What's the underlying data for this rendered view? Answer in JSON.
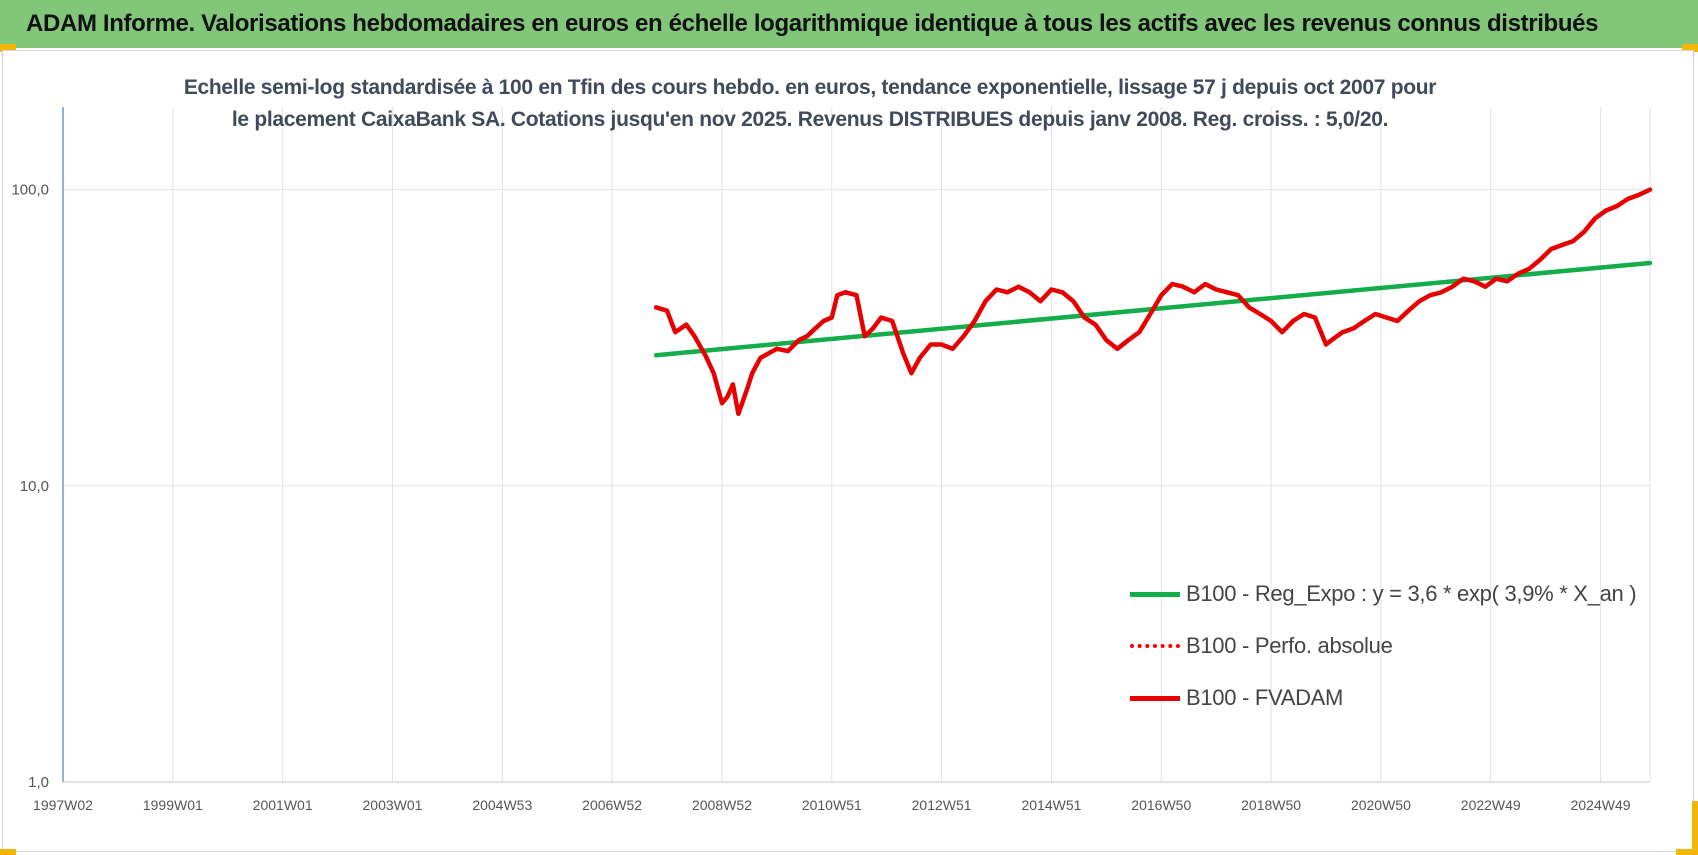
{
  "banner": {
    "title": "ADAM Informe. Valorisations hebdomadaires en euros en échelle logarithmique identique à tous les actifs avec les revenus connus distribués"
  },
  "chart_data": {
    "type": "line",
    "title": "Echelle semi-log standardisée à 100 en Tfin des cours hebdo. en euros, tendance exponentielle, lissage 57 j depuis oct 2007 pour le placement CaixaBank SA. Cotations jusqu'en nov 2025. Revenus DISTRIBUES depuis janv 2008. Reg. croiss. : 5,0/20.",
    "y_scale": "log",
    "ylim": [
      1,
      190
    ],
    "y_ticks": [
      {
        "value": 1,
        "label": "1,0"
      },
      {
        "value": 10,
        "label": "10,0"
      },
      {
        "value": 100,
        "label": "100,0"
      }
    ],
    "x_range": [
      1997.0,
      2025.9
    ],
    "x_ticks": [
      {
        "value": 1997.0,
        "label": "1997W02"
      },
      {
        "value": 1999.0,
        "label": "1999W01"
      },
      {
        "value": 2001.0,
        "label": "2001W01"
      },
      {
        "value": 2003.0,
        "label": "2003W01"
      },
      {
        "value": 2005.0,
        "label": "2004W53"
      },
      {
        "value": 2007.0,
        "label": "2006W52"
      },
      {
        "value": 2009.0,
        "label": "2008W52"
      },
      {
        "value": 2011.0,
        "label": "2010W51"
      },
      {
        "value": 2013.0,
        "label": "2012W51"
      },
      {
        "value": 2015.0,
        "label": "2014W51"
      },
      {
        "value": 2017.0,
        "label": "2016W50"
      },
      {
        "value": 2019.0,
        "label": "2018W50"
      },
      {
        "value": 2021.0,
        "label": "2020W50"
      },
      {
        "value": 2023.0,
        "label": "2022W49"
      },
      {
        "value": 2025.0,
        "label": "2024W49"
      }
    ],
    "grid": true,
    "legend_position": "bottom-right",
    "series": [
      {
        "name": "B100 - Reg_Expo : y = 3,6 * exp( 3,9% *  X_an )",
        "color": "#13ad49",
        "style": "solid",
        "x": [
          2007.8,
          2025.9
        ],
        "y": [
          27.6,
          56.5
        ]
      },
      {
        "name": "B100 - Perfo. absolue",
        "color": "#ff0000",
        "style": "dotted",
        "x": [],
        "y": []
      },
      {
        "name": "B100 - FVADAM",
        "color": "#e60000",
        "style": "solid",
        "x": [
          2007.8,
          2008.0,
          2008.15,
          2008.35,
          2008.5,
          2008.7,
          2008.85,
          2009.0,
          2009.1,
          2009.2,
          2009.3,
          2009.45,
          2009.55,
          2009.7,
          2009.85,
          2010.0,
          2010.2,
          2010.4,
          2010.55,
          2010.7,
          2010.85,
          2011.0,
          2011.1,
          2011.25,
          2011.45,
          2011.6,
          2011.75,
          2011.9,
          2012.1,
          2012.3,
          2012.45,
          2012.6,
          2012.8,
          2013.0,
          2013.2,
          2013.4,
          2013.6,
          2013.8,
          2014.0,
          2014.2,
          2014.4,
          2014.6,
          2014.8,
          2015.0,
          2015.2,
          2015.4,
          2015.6,
          2015.8,
          2016.0,
          2016.2,
          2016.4,
          2016.6,
          2016.8,
          2017.0,
          2017.2,
          2017.4,
          2017.6,
          2017.8,
          2018.0,
          2018.2,
          2018.4,
          2018.6,
          2018.8,
          2019.0,
          2019.2,
          2019.4,
          2019.6,
          2019.8,
          2020.0,
          2020.1,
          2020.3,
          2020.5,
          2020.7,
          2020.9,
          2021.1,
          2021.3,
          2021.5,
          2021.7,
          2021.9,
          2022.1,
          2022.3,
          2022.5,
          2022.7,
          2022.9,
          2023.1,
          2023.3,
          2023.5,
          2023.7,
          2023.9,
          2024.1,
          2024.3,
          2024.5,
          2024.7,
          2024.9,
          2025.1,
          2025.3,
          2025.5,
          2025.7,
          2025.9
        ],
        "y": [
          40,
          39,
          33,
          35,
          32,
          27.5,
          24,
          19,
          20,
          22,
          17.5,
          21,
          24,
          27,
          28,
          29,
          28.5,
          31,
          32,
          34,
          36,
          37,
          44,
          45,
          44,
          32,
          34,
          37,
          36,
          28,
          24,
          27,
          30,
          30,
          29,
          32,
          36,
          42,
          46,
          45,
          47,
          45,
          42,
          46,
          45,
          42,
          37,
          35,
          31,
          29,
          31,
          33,
          38,
          44,
          48,
          47,
          45,
          48,
          46,
          45,
          44,
          40,
          38,
          36,
          33,
          36,
          38,
          37,
          30,
          31,
          33,
          34,
          36,
          38,
          37,
          36,
          39,
          42,
          44,
          45,
          47,
          50,
          49,
          47,
          50,
          49,
          52,
          54,
          58,
          63,
          65,
          67,
          72,
          80,
          85,
          88,
          93,
          96,
          100
        ]
      }
    ]
  }
}
